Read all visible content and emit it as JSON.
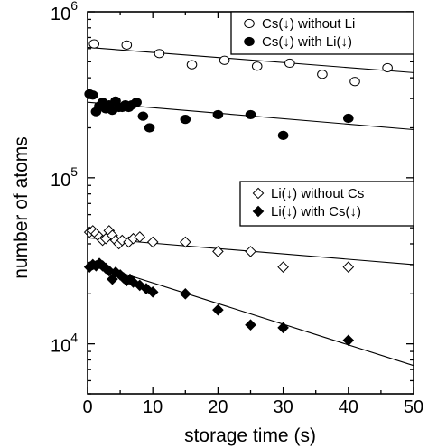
{
  "chart_data": {
    "type": "scatter",
    "xlabel": "storage time (s)",
    "ylabel": "number of atoms",
    "xlim": [
      0,
      50
    ],
    "ylim": [
      5000,
      1000000
    ],
    "y_scale": "log",
    "x_ticks": [
      0,
      10,
      20,
      30,
      40,
      50
    ],
    "y_ticks": [
      {
        "value": 10000,
        "base": "10",
        "exp": "4"
      },
      {
        "value": 100000,
        "base": "10",
        "exp": "5"
      },
      {
        "value": 1000000,
        "base": "10",
        "exp": "6"
      }
    ],
    "grid": false,
    "series": [
      {
        "name": "Cs(↓) without Li",
        "marker": "circle-open",
        "legend_group": "top",
        "points": [
          [
            1,
            640000
          ],
          [
            6,
            630000
          ],
          [
            11,
            560000
          ],
          [
            16,
            480000
          ],
          [
            21,
            510000
          ],
          [
            26,
            470000
          ],
          [
            31,
            490000
          ],
          [
            36,
            420000
          ],
          [
            41,
            380000
          ],
          [
            46,
            460000
          ]
        ],
        "fit": [
          [
            0,
            610000
          ],
          [
            50,
            430000
          ]
        ]
      },
      {
        "name": "Cs(↓) with Li(↓)",
        "marker": "circle-filled",
        "legend_group": "top",
        "points": [
          [
            0.3,
            320000
          ],
          [
            0.8,
            315000
          ],
          [
            1.3,
            250000
          ],
          [
            1.8,
            270000
          ],
          [
            2.3,
            285000
          ],
          [
            2.8,
            260000
          ],
          [
            3.3,
            275000
          ],
          [
            3.8,
            255000
          ],
          [
            4.3,
            290000
          ],
          [
            4.8,
            265000
          ],
          [
            5.3,
            265000
          ],
          [
            5.8,
            275000
          ],
          [
            6.3,
            265000
          ],
          [
            6.8,
            275000
          ],
          [
            7.5,
            285000
          ],
          [
            8.5,
            235000
          ],
          [
            9.5,
            200000
          ],
          [
            15,
            225000
          ],
          [
            20,
            240000
          ],
          [
            25,
            240000
          ],
          [
            30,
            180000
          ],
          [
            40,
            228000
          ]
        ],
        "fit": [
          [
            0,
            285000
          ],
          [
            50,
            195000
          ]
        ]
      },
      {
        "name": "Li(↓) without Cs",
        "marker": "diamond-open",
        "legend_group": "bottom",
        "points": [
          [
            0.3,
            47000
          ],
          [
            0.8,
            48000
          ],
          [
            1.3,
            46000
          ],
          [
            1.8,
            44000
          ],
          [
            2.3,
            42000
          ],
          [
            2.8,
            43000
          ],
          [
            3.3,
            48000
          ],
          [
            3.8,
            45000
          ],
          [
            4.3,
            42000
          ],
          [
            4.8,
            40000
          ],
          [
            5.3,
            42000
          ],
          [
            6.3,
            41000
          ],
          [
            7.0,
            43000
          ],
          [
            8.0,
            44000
          ],
          [
            10,
            41000
          ],
          [
            15,
            41000
          ],
          [
            20,
            36000
          ],
          [
            25,
            36000
          ],
          [
            30,
            29000
          ],
          [
            40,
            29000
          ]
        ],
        "fit": [
          [
            0,
            43500
          ],
          [
            50,
            30000
          ]
        ]
      },
      {
        "name": "Li(↓) with Cs(↓)",
        "marker": "diamond-filled",
        "legend_group": "bottom",
        "points": [
          [
            0.3,
            29000
          ],
          [
            0.8,
            30000
          ],
          [
            1.3,
            29500
          ],
          [
            1.8,
            30500
          ],
          [
            2.3,
            29500
          ],
          [
            2.8,
            28500
          ],
          [
            3.3,
            27500
          ],
          [
            3.8,
            24500
          ],
          [
            4.3,
            27000
          ],
          [
            5.0,
            26000
          ],
          [
            5.5,
            25000
          ],
          [
            6.0,
            24000
          ],
          [
            6.5,
            24500
          ],
          [
            7.0,
            23500
          ],
          [
            8.0,
            22500
          ],
          [
            9.0,
            21500
          ],
          [
            10,
            20500
          ],
          [
            15,
            20000
          ],
          [
            20,
            16000
          ],
          [
            25,
            13000
          ],
          [
            30,
            12500
          ],
          [
            40,
            10500
          ]
        ],
        "fit": [
          [
            0,
            31000
          ],
          [
            50,
            7400
          ]
        ]
      }
    ]
  }
}
